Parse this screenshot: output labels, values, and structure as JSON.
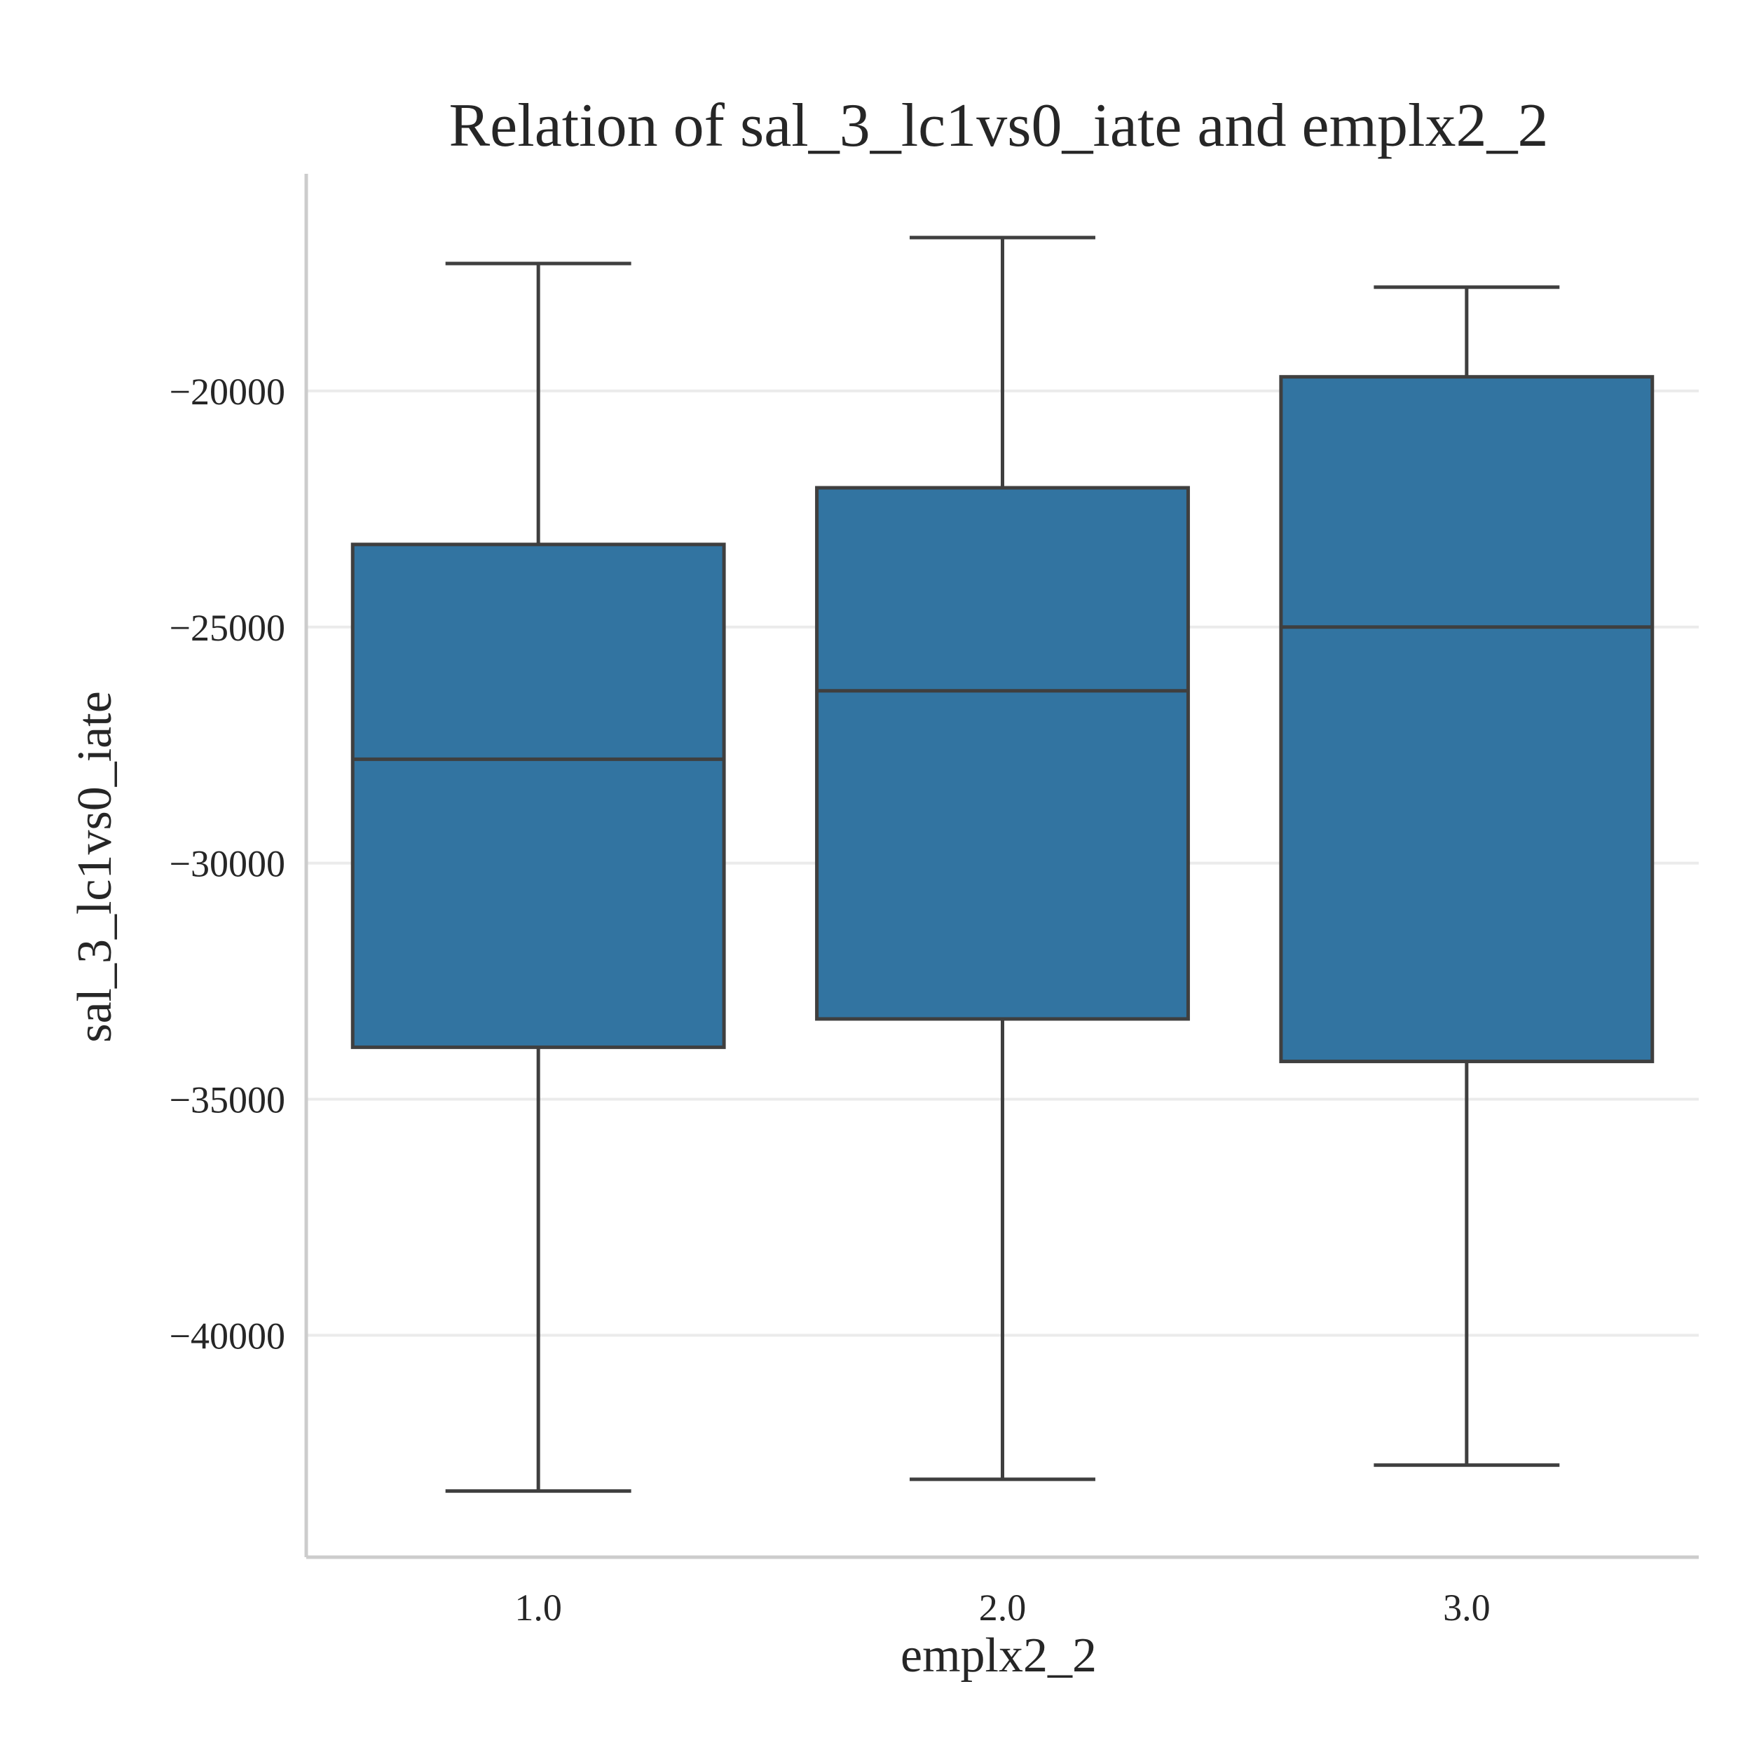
{
  "chart_data": {
    "type": "box",
    "title": "Relation of sal_3_lc1vs0_iate and emplx2_2",
    "xlabel": "emplx2_2",
    "ylabel": "sal_3_lc1vs0_iate",
    "categories": [
      "1.0",
      "2.0",
      "3.0"
    ],
    "y_ticks": [
      -20000,
      -25000,
      -30000,
      -35000,
      -40000
    ],
    "y_tick_labels": [
      "−20000",
      "−25000",
      "−30000",
      "−35000",
      "−40000"
    ],
    "ylim": [
      -44700,
      -15400
    ],
    "grid": "horizontal",
    "colors": {
      "box_fill": "#3274a1",
      "box_edge": "#3f3f3f",
      "grid": "#ebebeb",
      "spine": "#cccccc",
      "text": "#262626"
    },
    "boxes": [
      {
        "category": "1.0",
        "whisker_low": -43300,
        "q1": -33900,
        "median": -27800,
        "q3": -23250,
        "whisker_high": -17300
      },
      {
        "category": "2.0",
        "whisker_low": -43050,
        "q1": -33300,
        "median": -26350,
        "q3": -22050,
        "whisker_high": -16750
      },
      {
        "category": "3.0",
        "whisker_low": -42750,
        "q1": -34200,
        "median": -25000,
        "q3": -19700,
        "whisker_high": -17800
      }
    ]
  }
}
